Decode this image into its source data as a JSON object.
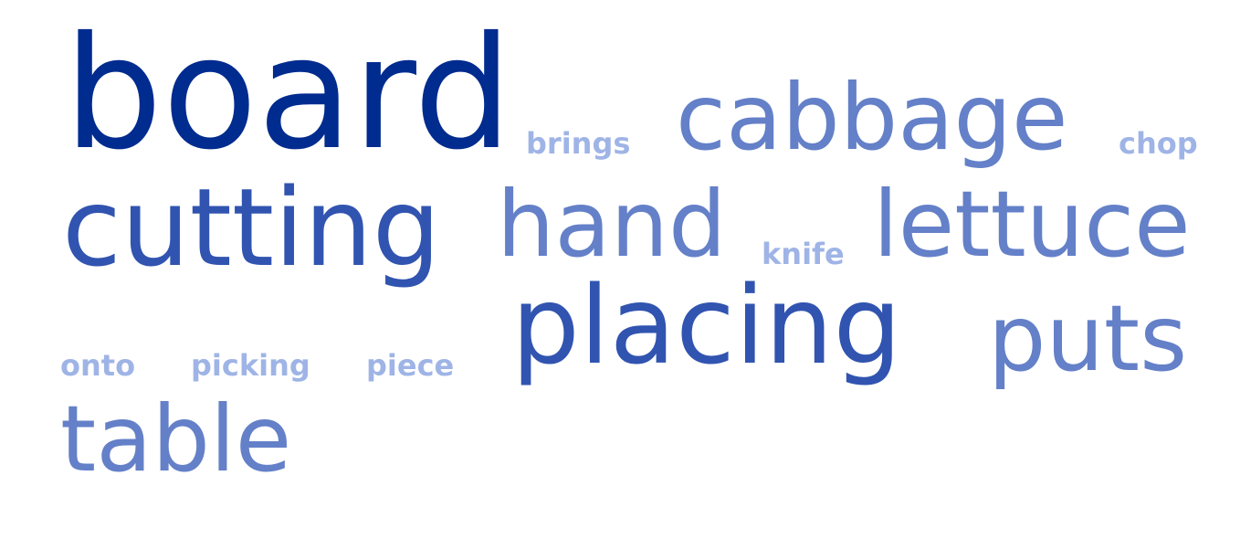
{
  "words": {
    "board": "board",
    "brings": "brings",
    "cabbage": "cabbage",
    "chop": "chop",
    "cutting": "cutting",
    "hand": "hand",
    "knife": "knife",
    "lettuce": "lettuce",
    "onto": "onto",
    "picking": "picking",
    "piece": "piece",
    "placing": "placing",
    "puts": "puts",
    "table": "table"
  },
  "colors": {
    "tier1": "#002b8f",
    "tier2": "#3154b0",
    "tier3": "#6480c8",
    "tier4": "#9fb4e6"
  }
}
